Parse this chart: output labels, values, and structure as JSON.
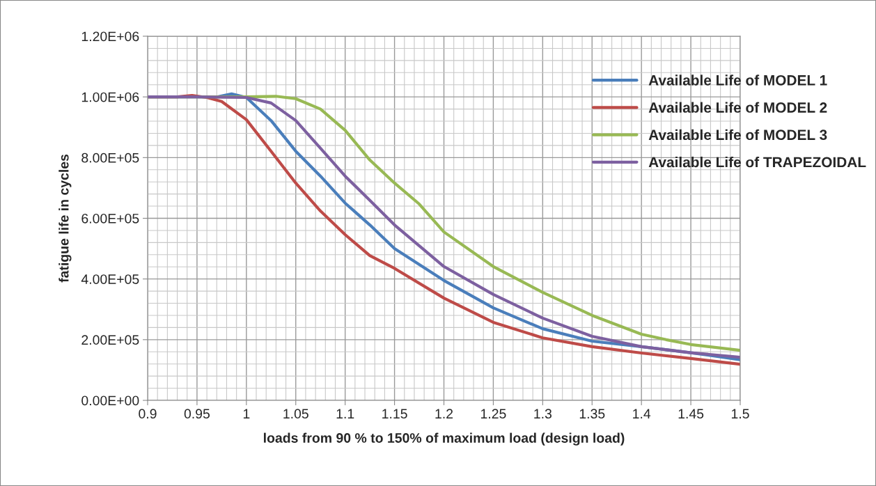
{
  "chart_data": {
    "type": "line",
    "xlabel": "loads from 90 % to 150% of maximum load (design load)",
    "ylabel": "fatigue life in cycles",
    "xlim": [
      0.9,
      1.5
    ],
    "xticks": [
      0.9,
      0.95,
      1,
      1.05,
      1.1,
      1.15,
      1.2,
      1.25,
      1.3,
      1.35,
      1.4,
      1.45,
      1.5
    ],
    "ylim": [
      0,
      1200000
    ],
    "yticks": [
      {
        "value": 0,
        "label": "0.00E+00"
      },
      {
        "value": 200000,
        "label": "2.00E+05"
      },
      {
        "value": 400000,
        "label": "4.00E+05"
      },
      {
        "value": 600000,
        "label": "6.00E+05"
      },
      {
        "value": 800000,
        "label": "8.00E+05"
      },
      {
        "value": 1000000,
        "label": "1.00E+06"
      },
      {
        "value": 1200000,
        "label": "1.20E+06"
      }
    ],
    "grid": true,
    "legend": "top right",
    "marker": "none",
    "line_style": "solid",
    "series": [
      {
        "name": "Available Life of MODEL 1",
        "color": "#4a7ebb",
        "x": [
          0.9,
          0.95,
          0.97,
          0.985,
          1.0,
          1.025,
          1.05,
          1.075,
          1.1,
          1.125,
          1.15,
          1.2,
          1.25,
          1.3,
          1.35,
          1.4,
          1.45,
          1.5
        ],
        "values": [
          1000000,
          1000000,
          1000000,
          1010000,
          998000,
          922000,
          821000,
          739000,
          650000,
          578000,
          500000,
          395000,
          305000,
          236000,
          195000,
          177000,
          157000,
          134000
        ]
      },
      {
        "name": "Available Life of MODEL 2",
        "color": "#be4b48",
        "x": [
          0.9,
          0.93,
          0.945,
          0.96,
          0.975,
          1.0,
          1.025,
          1.05,
          1.075,
          1.1,
          1.125,
          1.15,
          1.2,
          1.25,
          1.3,
          1.35,
          1.4,
          1.45,
          1.5
        ],
        "values": [
          1000000,
          1000000,
          1005000,
          998000,
          985000,
          925000,
          821000,
          716000,
          624000,
          546000,
          477000,
          435000,
          337000,
          257000,
          206000,
          177000,
          156000,
          138000,
          119000
        ]
      },
      {
        "name": "Available Life of MODEL 3",
        "color": "#98b954",
        "x": [
          0.9,
          0.95,
          1.0,
          1.03,
          1.05,
          1.075,
          1.1,
          1.125,
          1.15,
          1.175,
          1.2,
          1.25,
          1.3,
          1.35,
          1.4,
          1.425,
          1.45,
          1.5
        ],
        "values": [
          1000000,
          1000000,
          1000000,
          1002000,
          994000,
          960000,
          890000,
          792000,
          716000,
          647000,
          555000,
          441000,
          356000,
          280000,
          218000,
          200000,
          184000,
          165000
        ]
      },
      {
        "name": "Available Life of TRAPEZOIDAL",
        "color": "#7d60a0",
        "x": [
          0.9,
          0.95,
          1.0,
          1.025,
          1.05,
          1.075,
          1.1,
          1.125,
          1.15,
          1.2,
          1.25,
          1.3,
          1.35,
          1.4,
          1.45,
          1.5
        ],
        "values": [
          1000000,
          1000000,
          998000,
          980000,
          922000,
          831000,
          739000,
          659000,
          578000,
          441000,
          349000,
          271000,
          211000,
          177000,
          157000,
          142000
        ]
      }
    ]
  }
}
